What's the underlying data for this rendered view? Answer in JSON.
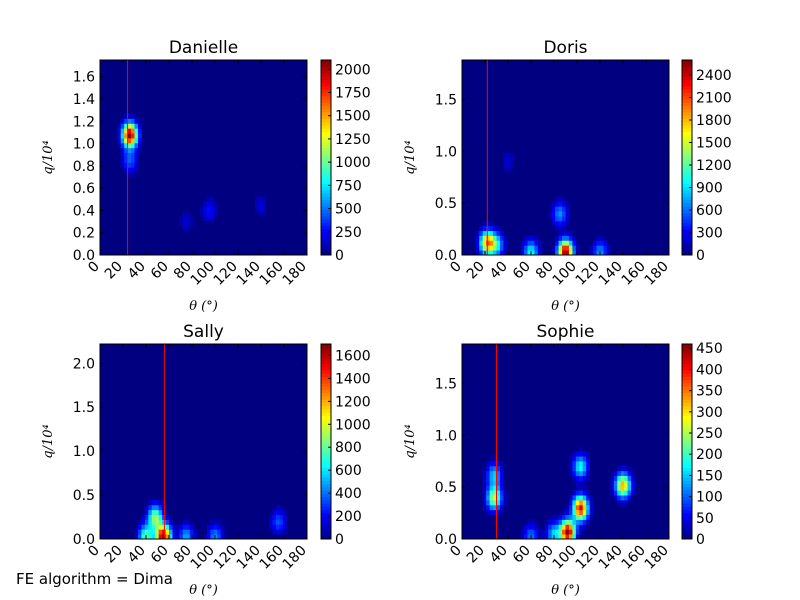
{
  "figure": {
    "footnote": "FE algorithm = Dima"
  },
  "chart_data": [
    {
      "type": "heatmap",
      "title": "Danielle",
      "xlabel": "θ (°)",
      "ylabel": "q/10⁴",
      "xlim": [
        0,
        180
      ],
      "ylim": [
        0,
        1.75
      ],
      "xticks": [
        "0",
        "20",
        "40",
        "60",
        "80",
        "100",
        "120",
        "140",
        "160",
        "180"
      ],
      "yticks": [
        "0.0",
        "0.2",
        "0.4",
        "0.6",
        "0.8",
        "1.0",
        "1.2",
        "1.4",
        "1.6"
      ],
      "colorbar": {
        "min": 0,
        "max": 2100,
        "ticks": [
          "0",
          "250",
          "500",
          "750",
          "1000",
          "1250",
          "1500",
          "1750",
          "2000"
        ]
      },
      "vline_x": 24,
      "colormap": "jet",
      "hotspots": [
        {
          "x": 26,
          "y": 1.08,
          "value": 2100
        },
        {
          "x": 26,
          "y": 0.85,
          "value": 450
        },
        {
          "x": 95,
          "y": 0.4,
          "value": 280
        },
        {
          "x": 140,
          "y": 0.45,
          "value": 180
        },
        {
          "x": 75,
          "y": 0.3,
          "value": 160
        }
      ]
    },
    {
      "type": "heatmap",
      "title": "Doris",
      "xlabel": "θ (°)",
      "ylabel": "q/10⁴",
      "xlim": [
        0,
        180
      ],
      "ylim": [
        0,
        1.88
      ],
      "xticks": [
        "0",
        "20",
        "40",
        "60",
        "80",
        "100",
        "120",
        "140",
        "160",
        "180"
      ],
      "yticks": [
        "0.0",
        "0.5",
        "1.0",
        "1.5"
      ],
      "colorbar": {
        "min": 0,
        "max": 2600,
        "ticks": [
          "0",
          "300",
          "600",
          "900",
          "1200",
          "1500",
          "1800",
          "2100",
          "2400"
        ]
      },
      "vline_x": 22,
      "colormap": "jet",
      "hotspots": [
        {
          "x": 22,
          "y": 0.12,
          "value": 1900
        },
        {
          "x": 30,
          "y": 0.1,
          "value": 900
        },
        {
          "x": 90,
          "y": 0.03,
          "value": 2600
        },
        {
          "x": 85,
          "y": 0.4,
          "value": 700
        },
        {
          "x": 60,
          "y": 0.03,
          "value": 1000
        },
        {
          "x": 120,
          "y": 0.03,
          "value": 700
        },
        {
          "x": 40,
          "y": 0.9,
          "value": 200
        }
      ]
    },
    {
      "type": "heatmap",
      "title": "Sally",
      "xlabel": "θ (°)",
      "ylabel": "q/10⁴",
      "xlim": [
        0,
        180
      ],
      "ylim": [
        0,
        2.22
      ],
      "xticks": [
        "0",
        "20",
        "40",
        "60",
        "80",
        "100",
        "120",
        "140",
        "160",
        "180"
      ],
      "yticks": [
        "0.0",
        "0.5",
        "1.0",
        "1.5",
        "2.0"
      ],
      "colorbar": {
        "min": 0,
        "max": 1700,
        "ticks": [
          "0",
          "200",
          "400",
          "600",
          "800",
          "1000",
          "1200",
          "1400",
          "1600"
        ]
      },
      "vline_x": 56,
      "colormap": "jet",
      "hotspots": [
        {
          "x": 48,
          "y": 0.25,
          "value": 900
        },
        {
          "x": 55,
          "y": 0.03,
          "value": 1700
        },
        {
          "x": 40,
          "y": 0.03,
          "value": 800
        },
        {
          "x": 75,
          "y": 0.03,
          "value": 500
        },
        {
          "x": 100,
          "y": 0.03,
          "value": 450
        },
        {
          "x": 155,
          "y": 0.2,
          "value": 350
        }
      ]
    },
    {
      "type": "heatmap",
      "title": "Sophie",
      "xlabel": "θ (°)",
      "ylabel": "q/10⁴",
      "xlim": [
        0,
        180
      ],
      "ylim": [
        0,
        1.88
      ],
      "xticks": [
        "0",
        "20",
        "40",
        "60",
        "80",
        "100",
        "120",
        "140",
        "160",
        "180"
      ],
      "yticks": [
        "0.0",
        "0.5",
        "1.0",
        "1.5"
      ],
      "colorbar": {
        "min": 0,
        "max": 460,
        "ticks": [
          "0",
          "50",
          "100",
          "150",
          "200",
          "250",
          "300",
          "350",
          "400",
          "450"
        ]
      },
      "vline_x": 30,
      "colormap": "jet",
      "hotspots": [
        {
          "x": 28,
          "y": 0.4,
          "value": 260
        },
        {
          "x": 28,
          "y": 0.62,
          "value": 150
        },
        {
          "x": 92,
          "y": 0.07,
          "value": 460
        },
        {
          "x": 103,
          "y": 0.3,
          "value": 420
        },
        {
          "x": 103,
          "y": 0.7,
          "value": 180
        },
        {
          "x": 140,
          "y": 0.52,
          "value": 330
        },
        {
          "x": 80,
          "y": 0.05,
          "value": 150
        },
        {
          "x": 60,
          "y": 0.03,
          "value": 110
        }
      ]
    }
  ]
}
